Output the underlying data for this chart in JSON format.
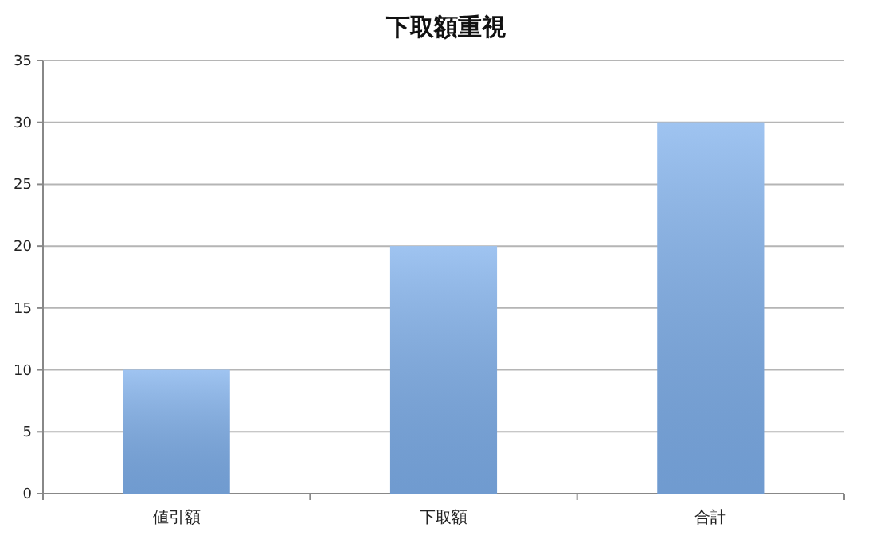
{
  "chart_data": {
    "type": "bar",
    "title": "下取額重視",
    "categories": [
      "値引額",
      "下取額",
      "合計"
    ],
    "series": [
      {
        "color": "#7fb0ec",
        "values": [
          10,
          20,
          30
        ]
      }
    ],
    "ylim": [
      0,
      35
    ],
    "yticks": [
      0,
      5,
      10,
      15,
      20,
      25,
      30,
      35
    ],
    "grid": "y"
  }
}
